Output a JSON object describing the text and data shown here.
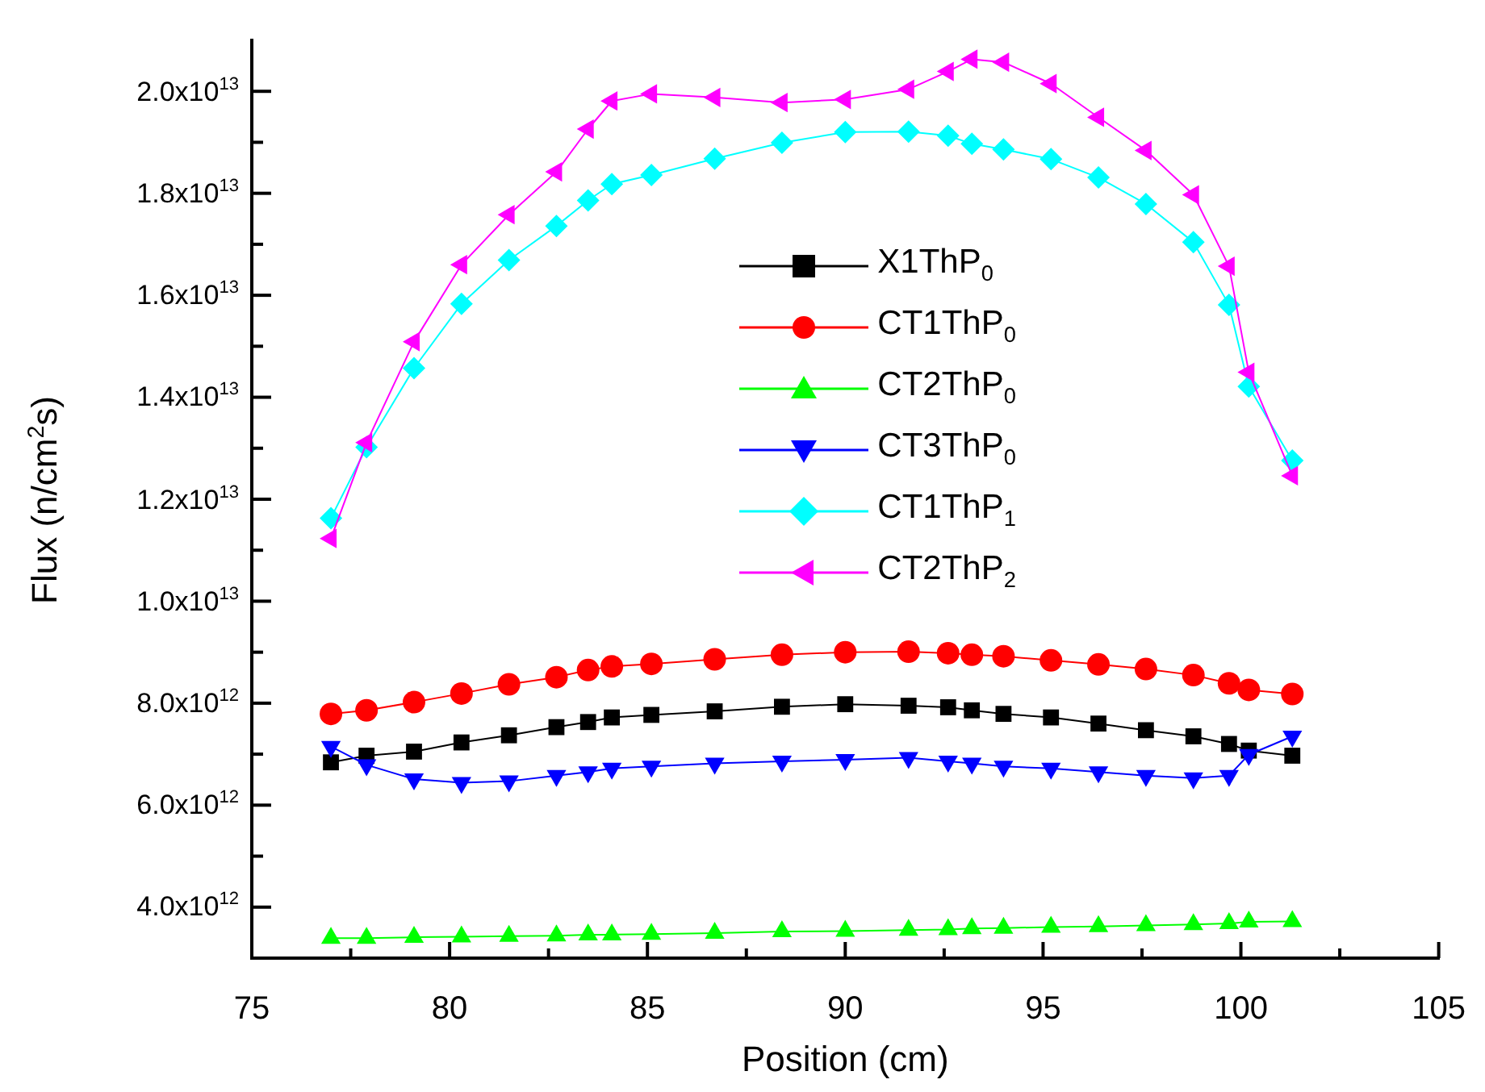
{
  "chart_data": {
    "type": "line",
    "xlabel": "Position (cm)",
    "ylabel": "Flux (n/cm$^{2}$s)",
    "x": [
      77.0,
      77.9,
      79.1,
      80.3,
      81.5,
      82.7,
      83.5,
      84.1,
      85.1,
      86.7,
      88.4,
      90.0,
      91.6,
      92.6,
      93.2,
      94.0,
      95.2,
      96.4,
      97.6,
      98.8,
      99.7,
      100.2,
      101.3
    ],
    "xlim": [
      75,
      105
    ],
    "xticks": [
      75,
      80,
      85,
      90,
      95,
      100,
      105
    ],
    "ylim": [
      3000000000000.0,
      21000000000000.0
    ],
    "yticks": [
      {
        "value": 4000000000000.0,
        "label": "4.0x10$^{12}$"
      },
      {
        "value": 6000000000000.0,
        "label": "6.0x10$^{12}$"
      },
      {
        "value": 8000000000000.0,
        "label": "8.0x10$^{12}$"
      },
      {
        "value": 10000000000000.0,
        "label": "1.0x10$^{13}$"
      },
      {
        "value": 12000000000000.0,
        "label": "1.2x10$^{13}$"
      },
      {
        "value": 14000000000000.0,
        "label": "1.4x10$^{13}$"
      },
      {
        "value": 16000000000000.0,
        "label": "1.6x10$^{13}$"
      },
      {
        "value": 18000000000000.0,
        "label": "1.8x10$^{13}$"
      },
      {
        "value": 20000000000000.0,
        "label": "2.0x10$^{13}$"
      }
    ],
    "grid": false,
    "legend": "center",
    "line_style": "solid",
    "series": [
      {
        "name": "X1ThP$_{0}$",
        "color": "#000000",
        "marker": "square",
        "values": [
          6840000000000.0,
          6970000000000.0,
          7050000000000.0,
          7230000000000.0,
          7370000000000.0,
          7530000000000.0,
          7630000000000.0,
          7720000000000.0,
          7770000000000.0,
          7840000000000.0,
          7930000000000.0,
          7980000000000.0,
          7950000000000.0,
          7920000000000.0,
          7860000000000.0,
          7790000000000.0,
          7720000000000.0,
          7600000000000.0,
          7470000000000.0,
          7350000000000.0,
          7200000000000.0,
          7070000000000.0,
          6970000000000.0
        ]
      },
      {
        "name": "CT1ThP$_{0}$",
        "color": "#ff0000",
        "marker": "circle",
        "values": [
          7790000000000.0,
          7860000000000.0,
          8020000000000.0,
          8190000000000.0,
          8370000000000.0,
          8510000000000.0,
          8650000000000.0,
          8720000000000.0,
          8770000000000.0,
          8860000000000.0,
          8950000000000.0,
          9000000000000.0,
          9010000000000.0,
          8980000000000.0,
          8950000000000.0,
          8920000000000.0,
          8840000000000.0,
          8760000000000.0,
          8670000000000.0,
          8550000000000.0,
          8390000000000.0,
          8260000000000.0,
          8180000000000.0
        ]
      },
      {
        "name": "CT2ThP$_{0}$",
        "color": "#00ff00",
        "marker": "triangle",
        "values": [
          3390000000000.0,
          3390000000000.0,
          3410000000000.0,
          3420000000000.0,
          3430000000000.0,
          3440000000000.0,
          3460000000000.0,
          3460000000000.0,
          3470000000000.0,
          3490000000000.0,
          3520000000000.0,
          3530000000000.0,
          3550000000000.0,
          3560000000000.0,
          3580000000000.0,
          3590000000000.0,
          3610000000000.0,
          3620000000000.0,
          3640000000000.0,
          3660000000000.0,
          3680000000000.0,
          3710000000000.0,
          3720000000000.0
        ]
      },
      {
        "name": "CT3ThP$_{0}$",
        "color": "#0000ff",
        "marker": "triangle_down",
        "values": [
          7150000000000.0,
          6790000000000.0,
          6510000000000.0,
          6440000000000.0,
          6470000000000.0,
          6580000000000.0,
          6650000000000.0,
          6720000000000.0,
          6760000000000.0,
          6820000000000.0,
          6860000000000.0,
          6890000000000.0,
          6930000000000.0,
          6860000000000.0,
          6820000000000.0,
          6760000000000.0,
          6720000000000.0,
          6650000000000.0,
          6580000000000.0,
          6530000000000.0,
          6580000000000.0,
          6990000000000.0,
          7350000000000.0
        ]
      },
      {
        "name": "CT1ThP$_{1}$",
        "color": "#00ffff",
        "marker": "diamond",
        "values": [
          11630000000000.0,
          13020000000000.0,
          14570000000000.0,
          15830000000000.0,
          16690000000000.0,
          17360000000000.0,
          17860000000000.0,
          18180000000000.0,
          18360000000000.0,
          18680000000000.0,
          18990000000000.0,
          19200000000000.0,
          19210000000000.0,
          19130000000000.0,
          18970000000000.0,
          18860000000000.0,
          18670000000000.0,
          18310000000000.0,
          17790000000000.0,
          17040000000000.0,
          15810000000000.0,
          14210000000000.0,
          12760000000000.0
        ]
      },
      {
        "name": "CT2ThP$_{2}$",
        "color": "#ff00ff",
        "marker": "triangle_left",
        "values": [
          11230000000000.0,
          13110000000000.0,
          15090000000000.0,
          16600000000000.0,
          17580000000000.0,
          18420000000000.0,
          19260000000000.0,
          19810000000000.0,
          19950000000000.0,
          19880000000000.0,
          19780000000000.0,
          19840000000000.0,
          20040000000000.0,
          20390000000000.0,
          20630000000000.0,
          20570000000000.0,
          20150000000000.0,
          19490000000000.0,
          18840000000000.0,
          17970000000000.0,
          16570000000000.0,
          14490000000000.0,
          12460000000000.0
        ]
      }
    ]
  }
}
